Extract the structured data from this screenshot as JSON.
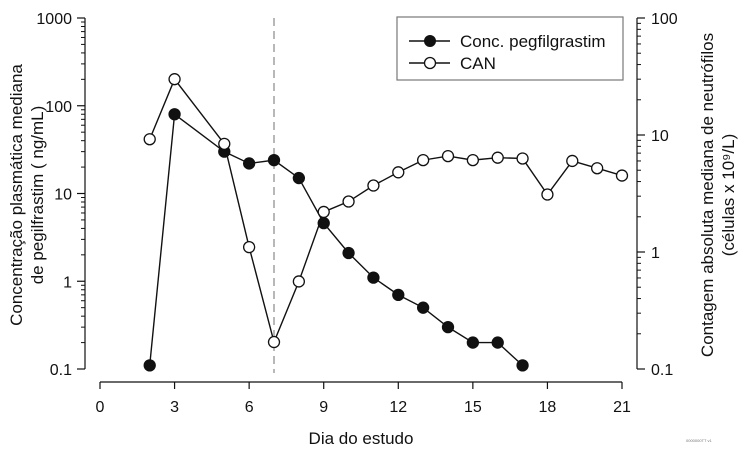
{
  "chart_data": {
    "type": "line",
    "title": "",
    "xlabel": "Dia do estudo",
    "ylabel_left": "Concentração plasmática mediana de pegilfrastim ( ng/mL)",
    "ylabel_left_lines": [
      "Concentração plasmática mediana",
      "de pegilfrastim ( ng/mL)"
    ],
    "ylabel_right": "Contagem absoluta mediana de neutrófilos (células x 10⁹/L)",
    "ylabel_right_lines": [
      "Contagem absoluta mediana de neutrófilos",
      "(células x 10⁹/L)"
    ],
    "x_ticks": [
      0,
      3,
      6,
      9,
      12,
      15,
      18,
      21
    ],
    "xlim": [
      0,
      21
    ],
    "y_left_scale": "log",
    "y_left_ticks": [
      "0.1",
      "1",
      "10",
      "100",
      "1000"
    ],
    "ylim_left": [
      0.1,
      1000
    ],
    "y_right_scale": "log",
    "y_right_ticks": [
      "0.1",
      "1",
      "10",
      "100"
    ],
    "ylim_right": [
      0.1,
      100
    ],
    "reference_line": {
      "x": 7,
      "style": "dashed"
    },
    "grid": false,
    "legend_position": "upper right",
    "series": [
      {
        "name": "Conc. pegfilgrastim",
        "axis": "left",
        "marker": "filled-circle",
        "x": [
          2,
          3,
          5,
          6,
          7,
          8,
          9,
          10,
          11,
          12,
          13,
          14,
          15,
          16,
          17
        ],
        "values": [
          0.11,
          80,
          30,
          22,
          24,
          15,
          4.6,
          2.1,
          1.1,
          0.7,
          0.5,
          0.3,
          0.2,
          0.2,
          0.11
        ]
      },
      {
        "name": "CAN",
        "axis": "right",
        "marker": "open-circle",
        "x": [
          2,
          3,
          5,
          6,
          7,
          8,
          9,
          10,
          11,
          12,
          13,
          14,
          15,
          16,
          17,
          18,
          19,
          20,
          21
        ],
        "values": [
          9.2,
          30,
          8.4,
          1.1,
          0.17,
          0.56,
          2.2,
          2.7,
          3.7,
          4.8,
          6.1,
          6.6,
          6.1,
          6.4,
          6.3,
          3.1,
          6.0,
          5.2,
          4.5
        ]
      }
    ]
  },
  "footnote": "0000000TT v1"
}
